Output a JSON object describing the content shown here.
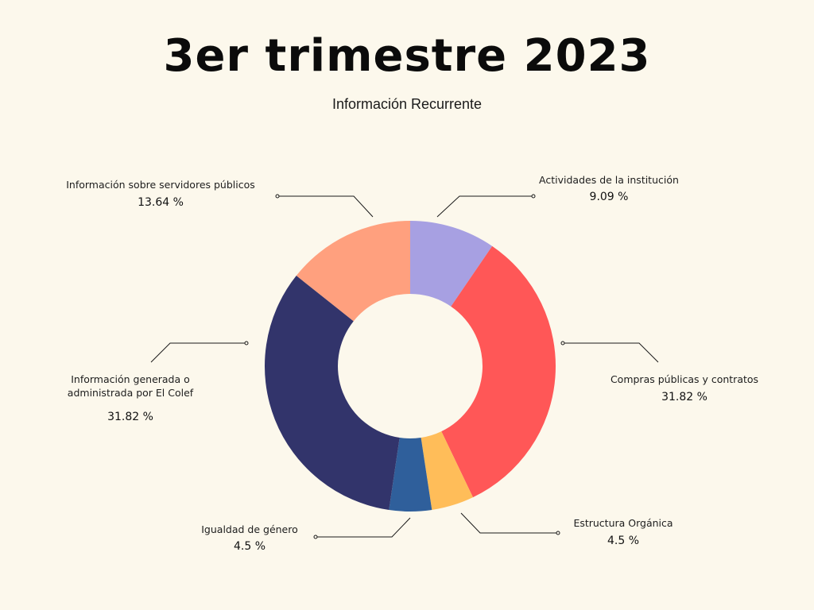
{
  "chart_data": {
    "type": "pie",
    "variant": "donut",
    "title": "3er trimestre 2023",
    "subtitle": "Información Recurrente",
    "slices": [
      {
        "label": "Actividades de la institución",
        "value": 9.09,
        "value_label": "9.09 %",
        "color": "#a7a0e2"
      },
      {
        "label": "Compras públicas y contratos",
        "value": 31.82,
        "value_label": "31.82 %",
        "color": "#ff5757"
      },
      {
        "label": "Estructura Orgánica",
        "value": 4.5,
        "value_label": "4.5 %",
        "color": "#ffbd59"
      },
      {
        "label": "Igualdad de género",
        "value": 4.5,
        "value_label": "4.5 %",
        "color": "#2f5f9b"
      },
      {
        "label": "Información generada o administrada por El Colef",
        "value": 31.82,
        "value_label": "31.82 %",
        "color": "#32346b"
      },
      {
        "label": "Información sobre servidores públicos",
        "value": 13.64,
        "value_label": "13.64 %",
        "color": "#ffa07e"
      }
    ],
    "legend": "callouts"
  }
}
